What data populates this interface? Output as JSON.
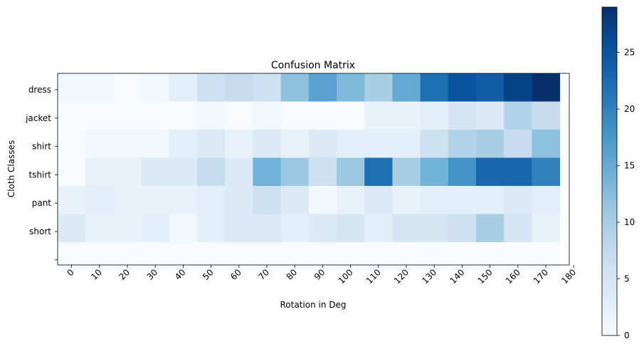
{
  "chart_data": {
    "type": "heatmap",
    "title": "Confusion Matrix",
    "xlabel": "Rotation in Deg",
    "ylabel": "Cloth Classes",
    "x_ticks": [
      "0",
      "10",
      "20",
      "30",
      "40",
      "50",
      "60",
      "70",
      "80",
      "90",
      "100",
      "110",
      "120",
      "130",
      "140",
      "150",
      "160",
      "170",
      "180"
    ],
    "y_ticks": [
      "dress",
      "jacket",
      "shirt",
      "tshirt",
      "pant",
      "short",
      ""
    ],
    "rows": [
      {
        "name": "dress",
        "values": [
          1,
          1,
          0,
          1,
          3,
          6,
          7,
          6,
          12,
          16,
          13,
          10,
          15,
          22,
          25,
          24,
          27,
          29
        ]
      },
      {
        "name": "jacket",
        "values": [
          0,
          0,
          0,
          0,
          0,
          1,
          0,
          1,
          0,
          0,
          0,
          2,
          2,
          3,
          5,
          4,
          9,
          7
        ]
      },
      {
        "name": "shirt",
        "values": [
          0,
          1,
          1,
          1,
          3,
          4,
          2,
          4,
          2,
          4,
          3,
          3,
          3,
          6,
          9,
          10,
          7,
          12
        ]
      },
      {
        "name": "tshirt",
        "values": [
          0,
          2,
          2,
          4,
          4,
          7,
          4,
          14,
          11,
          6,
          11,
          22,
          10,
          14,
          18,
          23,
          23,
          20
        ]
      },
      {
        "name": "pant",
        "values": [
          2,
          3,
          2,
          2,
          2,
          3,
          4,
          6,
          4,
          1,
          2,
          4,
          2,
          3,
          3,
          3,
          4,
          3
        ]
      },
      {
        "name": "short",
        "values": [
          4,
          2,
          2,
          3,
          1,
          3,
          4,
          4,
          3,
          4,
          5,
          3,
          5,
          5,
          6,
          10,
          5,
          2
        ]
      },
      {
        "name": "",
        "values": [
          0,
          0,
          0,
          0,
          0,
          0,
          0,
          0,
          0,
          0,
          0,
          0,
          0,
          0,
          0,
          0,
          0,
          0
        ]
      }
    ],
    "colorbar": {
      "min": 0,
      "max": 29,
      "ticks": [
        0,
        5,
        10,
        15,
        20,
        25
      ]
    },
    "colormap": "Blues",
    "colors": {
      "low": "#f7fbff",
      "high": "#08306b"
    },
    "grid": false
  }
}
